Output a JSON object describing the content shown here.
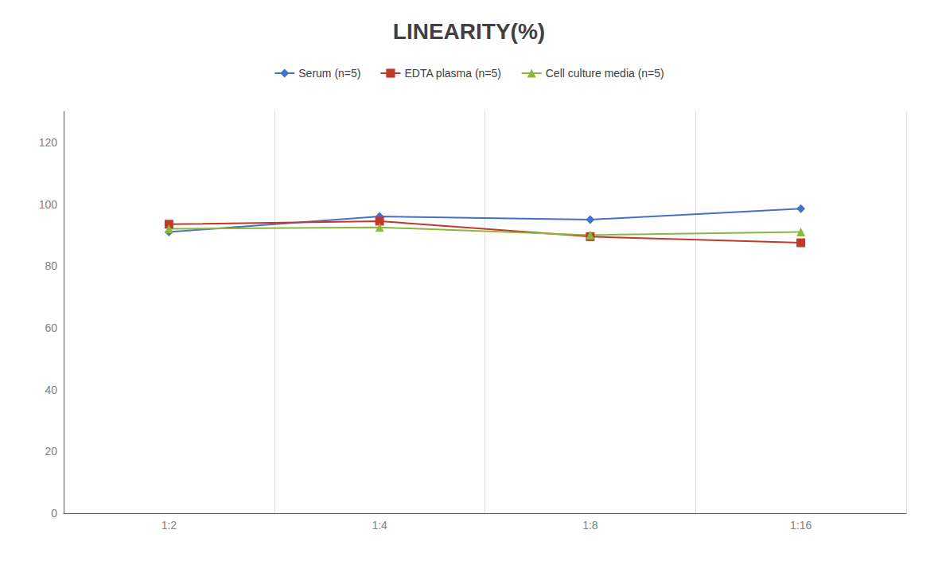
{
  "chart_data": {
    "type": "line",
    "title": "LINEARITY(%)",
    "categories": [
      "1:2",
      "1:4",
      "1:8",
      "1:16"
    ],
    "series": [
      {
        "name": "Serum (n=5)",
        "color": "#4472C4",
        "marker": "diamond",
        "values": [
          91,
          96,
          95,
          98.5
        ]
      },
      {
        "name": "EDTA plasma (n=5)",
        "color": "#C0392B",
        "marker": "square",
        "values": [
          93.5,
          94.5,
          89.5,
          87.5
        ]
      },
      {
        "name": "Cell culture media (n=5)",
        "color": "#8DB83E",
        "marker": "triangle",
        "values": [
          92,
          92.5,
          90,
          91
        ]
      }
    ],
    "ylim": [
      0,
      130
    ],
    "yticks": [
      0,
      20,
      40,
      60,
      80,
      100,
      120
    ],
    "grid": "x",
    "legend": "top"
  }
}
